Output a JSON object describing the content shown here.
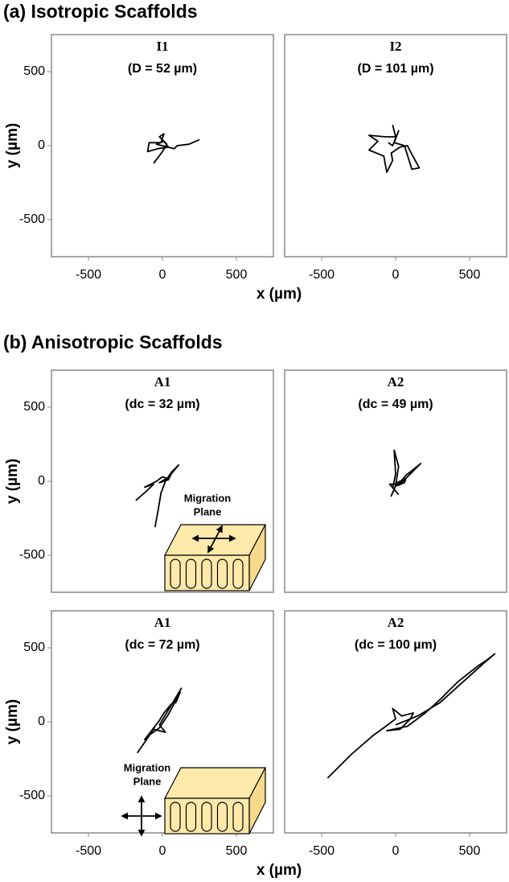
{
  "sections": [
    "(a) Isotropic Scaffolds",
    "(b) Anisotropic Scaffolds"
  ],
  "chart_data": [
    {
      "type": "line",
      "title": "I1",
      "subtitle": "(D = 52 µm)",
      "xlim": [
        -750,
        750
      ],
      "ylim": [
        -750,
        750
      ],
      "xticks": [
        -500,
        0,
        500
      ],
      "yticks": [
        500,
        0,
        -500
      ],
      "ylabel": "y (µm)",
      "xlabel": "x (µm)",
      "series": [
        {
          "color": "#000000",
          "x": [
            -60,
            0,
            30,
            -20,
            10,
            -10,
            -90,
            -100,
            -30,
            40,
            10,
            -40,
            80,
            100,
            180,
            250
          ],
          "y": [
            -120,
            -40,
            10,
            60,
            80,
            20,
            20,
            -40,
            -20,
            -10,
            30,
            10,
            -20,
            0,
            10,
            40
          ]
        }
      ]
    },
    {
      "type": "line",
      "title": "I2",
      "subtitle": "(D = 101 µm)",
      "xlim": [
        -750,
        750
      ],
      "ylim": [
        -750,
        750
      ],
      "xticks": [
        -500,
        0,
        500
      ],
      "series": [
        {
          "color": "#000000",
          "x": [
            -20,
            0,
            -70,
            -180,
            -120,
            -180,
            -80,
            -60,
            -20,
            -30,
            30,
            80,
            100,
            160,
            110,
            60,
            -10,
            20,
            -20,
            -50
          ],
          "y": [
            140,
            60,
            60,
            70,
            30,
            -30,
            -70,
            -180,
            -100,
            -50,
            -10,
            0,
            -40,
            -150,
            -160,
            0,
            20,
            100,
            0,
            20
          ]
        }
      ]
    },
    {
      "type": "line",
      "title": "A1",
      "subtitle": "(dc = 32 µm)",
      "xlim": [
        -750,
        750
      ],
      "ylim": [
        -750,
        750
      ],
      "yticks": [
        500,
        0,
        -500
      ],
      "ylabel": "y (µm)",
      "annotation": [
        "Migration",
        "Plane"
      ],
      "series": [
        {
          "color": "#000000",
          "x": [
            -180,
            -100,
            -60,
            -120,
            -40,
            0,
            30,
            -20,
            40,
            60,
            110,
            60,
            20,
            -10,
            -30,
            -50
          ],
          "y": [
            -130,
            -60,
            -20,
            -40,
            0,
            30,
            20,
            -10,
            10,
            50,
            110,
            60,
            0,
            -80,
            -200,
            -310
          ]
        }
      ]
    },
    {
      "type": "line",
      "title": "A2",
      "subtitle": "(dc = 49 µm)",
      "xlim": [
        -750,
        750
      ],
      "ylim": [
        -750,
        750
      ],
      "series": [
        {
          "color": "#000000",
          "x": [
            -20,
            0,
            -10,
            20,
            0,
            -30,
            10,
            70,
            60,
            10,
            70,
            170,
            100,
            30,
            -40,
            20
          ],
          "y": [
            -50,
            50,
            210,
            100,
            -30,
            -100,
            -10,
            20,
            -10,
            -30,
            40,
            120,
            50,
            -20,
            -20,
            -90
          ]
        }
      ]
    },
    {
      "type": "line",
      "title": "A1",
      "subtitle": "(dc = 72 µm)",
      "xlim": [
        -750,
        750
      ],
      "ylim": [
        -750,
        750
      ],
      "xticks": [
        -500,
        0,
        500
      ],
      "yticks": [
        500,
        0,
        -500
      ],
      "ylabel": "y (µm)",
      "xlabel": "x (µm)",
      "annotation": [
        "Migration",
        "Plane"
      ],
      "series": [
        {
          "color": "#000000",
          "x": [
            -170,
            -100,
            -50,
            -90,
            -20,
            40,
            120,
            90,
            60,
            10,
            -20,
            -120,
            -60,
            20,
            -20,
            130
          ],
          "y": [
            -210,
            -110,
            -30,
            -90,
            -40,
            50,
            200,
            130,
            120,
            60,
            10,
            -120,
            -50,
            -70,
            -20,
            230
          ]
        }
      ]
    },
    {
      "type": "line",
      "title": "A2",
      "subtitle": "(dc = 100 µm)",
      "xlim": [
        -750,
        750
      ],
      "ylim": [
        -750,
        750
      ],
      "xticks": [
        -500,
        0,
        500
      ],
      "series": [
        {
          "color": "#000000",
          "x": [
            -460,
            -300,
            -150,
            -80,
            0,
            -20,
            40,
            120,
            100,
            30,
            -60,
            80,
            200,
            300,
            420,
            560,
            620,
            670,
            600,
            300,
            150,
            0
          ],
          "y": [
            -380,
            -220,
            -90,
            -40,
            20,
            90,
            40,
            60,
            20,
            -50,
            -60,
            -30,
            60,
            150,
            270,
            380,
            420,
            460,
            400,
            130,
            40,
            -20
          ]
        }
      ]
    }
  ]
}
